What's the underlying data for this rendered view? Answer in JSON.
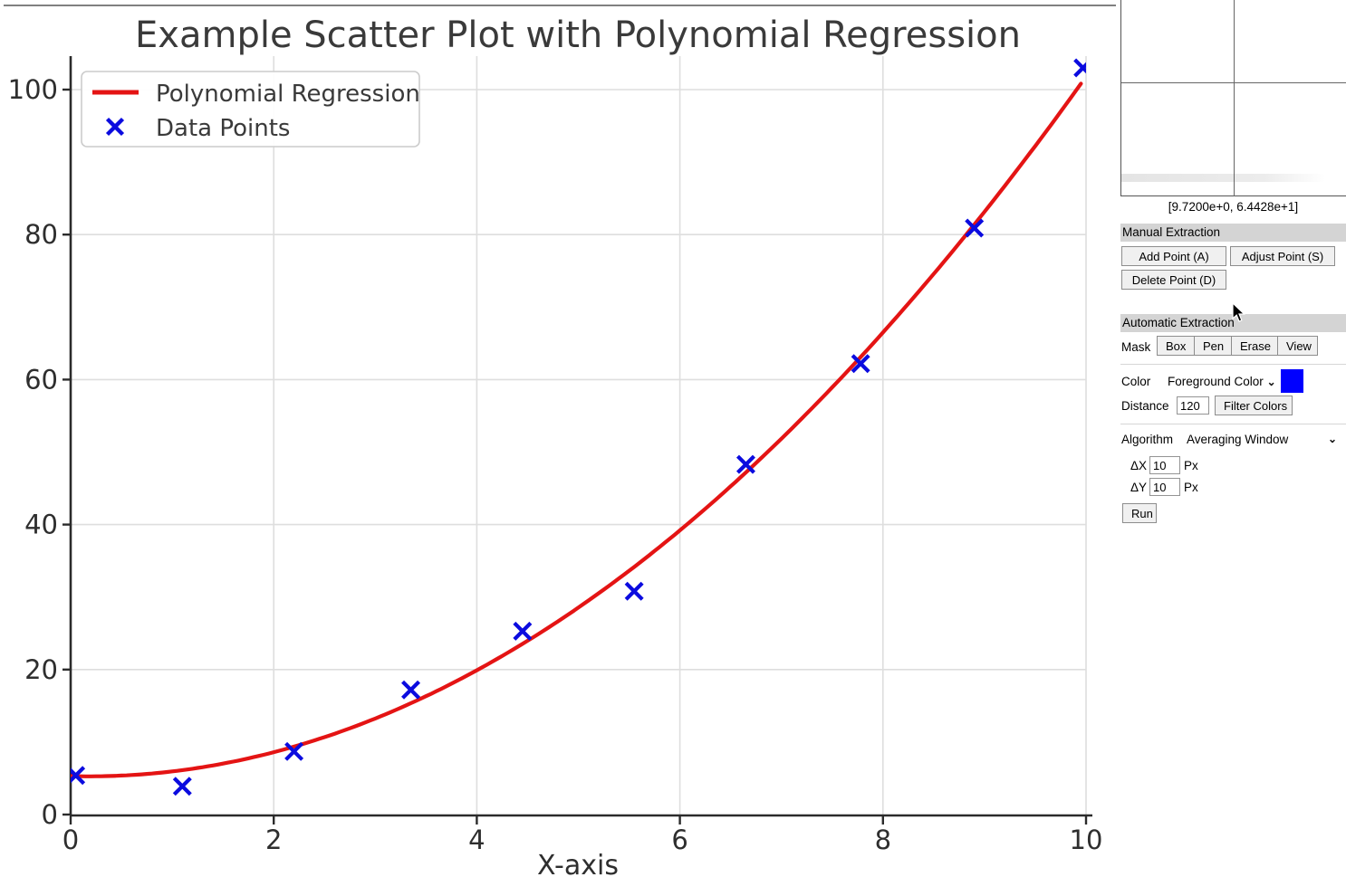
{
  "chart_data": {
    "type": "scatter",
    "title": "Example Scatter Plot with Polynomial Regression",
    "xlabel": "X-axis",
    "ylabel": "",
    "xlim": [
      0,
      10
    ],
    "ylim": [
      0,
      105
    ],
    "xticks": [
      0,
      2,
      4,
      6,
      8,
      10
    ],
    "yticks": [
      0,
      20,
      40,
      60,
      80,
      100
    ],
    "grid": true,
    "legend_position": "upper left",
    "series": [
      {
        "name": "Polynomial Regression",
        "type": "line",
        "color": "#e41414",
        "poly_coeffs": [
          1.0,
          -0.35,
          5.3
        ],
        "x_range": [
          0.0,
          9.97
        ]
      },
      {
        "name": "Data Points",
        "type": "scatter",
        "marker": "x",
        "color": "#0b0bdf",
        "points": [
          [
            0.05,
            5.4
          ],
          [
            1.1,
            3.9
          ],
          [
            2.2,
            8.7
          ],
          [
            3.35,
            17.2
          ],
          [
            4.45,
            25.3
          ],
          [
            5.55,
            30.8
          ],
          [
            6.65,
            48.3
          ],
          [
            7.78,
            62.2
          ],
          [
            8.9,
            80.9
          ],
          [
            9.97,
            103.0
          ]
        ]
      }
    ]
  },
  "magnifier": {
    "coords_label": "[9.7200e+0, 6.4428e+1]"
  },
  "panel": {
    "manual": {
      "header": "Manual Extraction",
      "add_button": "Add Point (A)",
      "adjust_button": "Adjust Point (S)",
      "delete_button": "Delete Point (D)"
    },
    "automatic": {
      "header": "Automatic Extraction",
      "mask_label": "Mask",
      "mask_buttons": [
        "Box",
        "Pen",
        "Erase",
        "View"
      ],
      "color_label": "Color",
      "color_value": "Foreground Color",
      "color_swatch": "#0000ff",
      "distance_label": "Distance",
      "distance_value": "120",
      "filter_button": "Filter Colors",
      "algorithm_label": "Algorithm",
      "algorithm_value": "Averaging Window",
      "dx_label": "ΔX",
      "dx_value": "10",
      "dx_unit": "Px",
      "dy_label": "ΔY",
      "dy_value": "10",
      "dy_unit": "Px",
      "run_button": "Run"
    }
  }
}
